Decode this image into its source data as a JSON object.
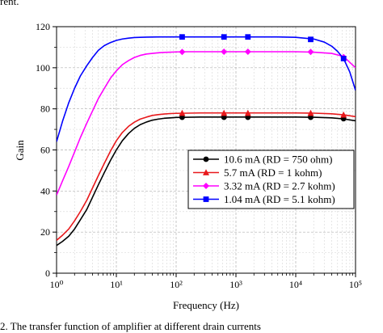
{
  "caption_top": "rent.",
  "caption_bottom": "2.   The transfer function of amplifier at different drain currents",
  "chart_data": {
    "type": "line",
    "xlabel": "Frequency (Hz)",
    "ylabel": "Gain",
    "x_scale": "log",
    "xlim": [
      1,
      100000
    ],
    "ylim": [
      0,
      120
    ],
    "x_ticks": [
      1,
      10,
      100,
      1000,
      10000,
      100000
    ],
    "x_tick_labels": [
      "10⁰",
      "10¹",
      "10²",
      "10³",
      "10⁴",
      "10⁵"
    ],
    "y_ticks": [
      0,
      20,
      40,
      60,
      80,
      100,
      120
    ],
    "grid": true,
    "legend_position": "center-right",
    "series": [
      {
        "name": "10.6 mA (RD = 750 ohm)",
        "color": "#000000",
        "marker": "circle",
        "x": [
          1,
          1.26,
          1.6,
          2,
          2.5,
          3.2,
          4,
          5,
          6.3,
          8,
          10,
          12.6,
          16,
          20,
          25,
          32,
          40,
          50,
          63,
          80,
          100,
          158,
          251,
          400,
          1000,
          10000,
          20000,
          40000,
          63000,
          100000
        ],
        "y": [
          13.5,
          15.5,
          18,
          21.5,
          26,
          31,
          37,
          43,
          49,
          55,
          60,
          64.5,
          68,
          70.5,
          72.3,
          73.6,
          74.5,
          75,
          75.4,
          75.6,
          75.8,
          75.9,
          76,
          76,
          76,
          76,
          75.9,
          75.6,
          75.1,
          74.2
        ],
        "markers_x": [
          126,
          631,
          1585,
          17783,
          63096
        ],
        "markers_y": [
          75.9,
          75.9,
          75.9,
          75.9,
          75.2
        ]
      },
      {
        "name": "5.7 mA (RD = 1 kohm)",
        "color": "#e8191c",
        "marker": "triangle",
        "x": [
          1,
          1.26,
          1.6,
          2,
          2.5,
          3.2,
          4,
          5,
          6.3,
          8,
          10,
          12.6,
          16,
          20,
          25,
          32,
          40,
          50,
          63,
          80,
          100,
          158,
          251,
          400,
          1000,
          10000,
          20000,
          40000,
          63000,
          100000
        ],
        "y": [
          16,
          18.5,
          21.5,
          25.5,
          30,
          35.5,
          41.5,
          47.5,
          53.5,
          59.5,
          64.5,
          68.5,
          71.5,
          73.5,
          75,
          76,
          76.8,
          77.2,
          77.5,
          77.7,
          77.8,
          77.9,
          78,
          78,
          78,
          78,
          77.9,
          77.6,
          77.1,
          76.2
        ],
        "markers_x": [
          126,
          631,
          1585,
          17783,
          63096
        ],
        "markers_y": [
          77.9,
          77.9,
          77.9,
          77.9,
          77.1
        ]
      },
      {
        "name": "3.32 mA (RD = 2.7 kohm)",
        "color": "#ff00ff",
        "marker": "diamond",
        "x": [
          1,
          1.26,
          1.6,
          2,
          2.5,
          3.2,
          4,
          5,
          6.3,
          8,
          10,
          12.6,
          16,
          20,
          25,
          32,
          40,
          50,
          63,
          80,
          100,
          158,
          251,
          1000,
          10000,
          20000,
          40000,
          63000,
          100000
        ],
        "y": [
          38,
          45,
          52,
          59,
          66,
          73,
          79,
          85,
          90,
          95,
          98.5,
          101.5,
          103.5,
          105,
          106,
          106.7,
          107,
          107.3,
          107.5,
          107.6,
          107.7,
          107.8,
          107.8,
          107.8,
          107.8,
          107.6,
          107,
          105.5,
          100
        ],
        "markers_x": [
          126,
          631,
          1585,
          17783,
          63096
        ],
        "markers_y": [
          107.7,
          107.8,
          107.8,
          107.7,
          105.2
        ]
      },
      {
        "name": "1.04 mA (RD = 5.1 kohm)",
        "color": "#0000ff",
        "marker": "square",
        "x": [
          1,
          1.26,
          1.6,
          2,
          2.5,
          3.2,
          4,
          5,
          6.3,
          8,
          10,
          12.6,
          16,
          20,
          25,
          32,
          50,
          100,
          1000,
          5000,
          10000,
          20000,
          30000,
          40000,
          50000,
          63000,
          80000,
          100000
        ],
        "y": [
          64,
          74,
          83,
          90,
          96,
          101,
          105,
          108.5,
          110.8,
          112.3,
          113.3,
          114,
          114.4,
          114.7,
          114.8,
          114.9,
          115,
          115,
          115,
          115,
          114.8,
          114,
          112.5,
          110.5,
          108,
          104.5,
          98,
          89
        ],
        "markers_x": [
          126,
          631,
          1585,
          17783,
          63096
        ],
        "markers_y": [
          115,
          115,
          115,
          113.8,
          104.5
        ]
      }
    ]
  }
}
